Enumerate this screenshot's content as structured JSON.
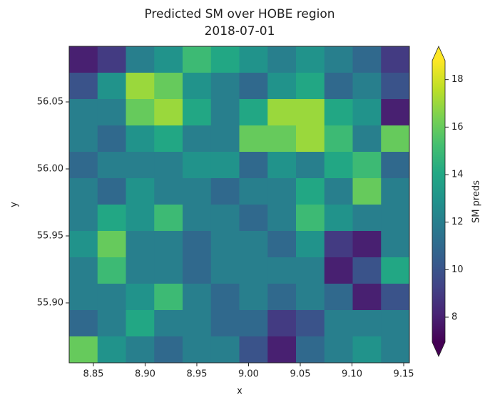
{
  "chart_data": {
    "type": "heatmap",
    "title": "Predicted SM over HOBE region",
    "subtitle": "2018-07-01",
    "x_label": "x",
    "y_label": "y",
    "colorbar_label": "SM preds",
    "colormap": "viridis",
    "xlim": [
      8.8266,
      9.1555
    ],
    "ylim": [
      55.8553,
      56.0915
    ],
    "xticks": [
      8.85,
      {
        "value": 8.9,
        "label": "8.90"
      },
      8.95,
      {
        "value": 9.0,
        "label": "9.00"
      },
      9.05,
      {
        "value": 9.1,
        "label": "9.10"
      },
      9.15
    ],
    "yticks": [
      {
        "value": 55.9,
        "label": "55.90"
      },
      55.95,
      {
        "value": 56.0,
        "label": "56.00"
      },
      56.05
    ],
    "clim": [
      6.95,
      18.8
    ],
    "cticks": [
      8,
      10,
      12,
      14,
      16,
      18
    ],
    "z": [
      [
        8,
        9,
        12,
        13,
        15,
        14,
        13,
        12,
        13,
        12,
        11,
        9
      ],
      [
        10,
        13,
        17,
        16,
        13,
        12,
        11,
        13,
        14,
        11,
        12,
        10
      ],
      [
        12,
        12,
        16,
        17,
        14,
        12,
        14,
        17,
        17,
        14,
        13,
        8
      ],
      [
        12,
        11,
        13,
        14,
        12,
        12,
        16,
        16,
        17,
        15,
        12,
        16
      ],
      [
        11,
        12,
        12,
        12,
        13,
        13,
        11,
        13,
        12,
        14,
        15,
        11
      ],
      [
        12,
        11,
        13,
        12,
        12,
        11,
        12,
        12,
        14,
        12,
        16,
        12
      ],
      [
        12,
        14,
        13,
        15,
        12,
        12,
        11,
        12,
        15,
        13,
        12,
        12
      ],
      [
        13,
        16,
        12,
        12,
        11,
        12,
        12,
        11,
        13,
        9,
        8,
        12
      ],
      [
        12,
        15,
        12,
        12,
        11,
        12,
        12,
        12,
        12,
        8,
        10,
        14
      ],
      [
        12,
        12,
        13,
        15,
        12,
        11,
        12,
        11,
        12,
        11,
        8,
        10
      ],
      [
        11,
        12,
        14,
        12,
        12,
        11,
        11,
        9,
        10,
        12,
        12,
        12
      ],
      [
        16,
        13,
        12,
        11,
        12,
        12,
        10,
        8,
        11,
        12,
        13,
        12
      ]
    ]
  }
}
